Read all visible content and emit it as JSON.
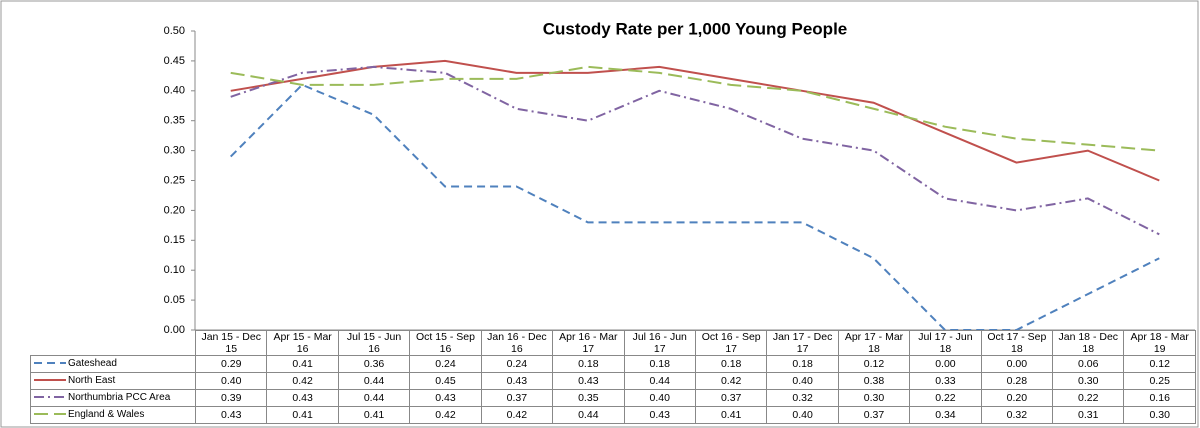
{
  "chart_data": {
    "type": "line",
    "title": "Custody Rate per 1,000 Young People",
    "categories": [
      "Jan 15 - Dec 15",
      "Apr 15 - Mar 16",
      "Jul 15 - Jun 16",
      "Oct 15 - Sep 16",
      "Jan 16 - Dec 16",
      "Apr 16 - Mar 17",
      "Jul 16 - Jun 17",
      "Oct 16 - Sep 17",
      "Jan 17 - Dec 17",
      "Apr 17 - Mar 18",
      "Jul 17 - Jun 18",
      "Oct 17 - Sep 18",
      "Jan 18 - Dec 18",
      "Apr 18 - Mar 19"
    ],
    "series": [
      {
        "name": "Gateshead",
        "color": "#4f81bd",
        "dash": "8 5",
        "values": [
          0.29,
          0.41,
          0.36,
          0.24,
          0.24,
          0.18,
          0.18,
          0.18,
          0.18,
          0.12,
          0,
          0,
          0.06,
          0.12
        ],
        "value_labels": [
          "0.29",
          "0.41",
          "0.36",
          "0.24",
          "0.24",
          "0.18",
          "0.18",
          "0.18",
          "0.18",
          "0.12",
          "0.00",
          "0.00",
          "0.06",
          "0.12"
        ]
      },
      {
        "name": "North East",
        "color": "#c0504d",
        "dash": "none",
        "values": [
          0.4,
          0.42,
          0.44,
          0.45,
          0.43,
          0.43,
          0.44,
          0.42,
          0.4,
          0.38,
          0.33,
          0.28,
          0.3,
          0.25
        ],
        "value_labels": [
          "0.40",
          "0.42",
          "0.44",
          "0.45",
          "0.43",
          "0.43",
          "0.44",
          "0.42",
          "0.40",
          "0.38",
          "0.33",
          "0.28",
          "0.30",
          "0.25"
        ]
      },
      {
        "name": "Northumbria PCC Area",
        "color": "#8064a2",
        "dash": "10 4 2 4",
        "values": [
          0.39,
          0.43,
          0.44,
          0.43,
          0.37,
          0.35,
          0.4,
          0.37,
          0.32,
          0.3,
          0.22,
          0.2,
          0.22,
          0.16
        ],
        "value_labels": [
          "0.39",
          "0.43",
          "0.44",
          "0.43",
          "0.37",
          "0.35",
          "0.40",
          "0.37",
          "0.32",
          "0.30",
          "0.22",
          "0.20",
          "0.22",
          "0.16"
        ]
      },
      {
        "name": "England & Wales",
        "color": "#9bbb59",
        "dash": "14 6",
        "values": [
          0.43,
          0.41,
          0.41,
          0.42,
          0.42,
          0.44,
          0.43,
          0.41,
          0.4,
          0.37,
          0.34,
          0.32,
          0.31,
          0.3
        ],
        "value_labels": [
          "0.43",
          "0.41",
          "0.41",
          "0.42",
          "0.42",
          "0.44",
          "0.43",
          "0.41",
          "0.40",
          "0.37",
          "0.34",
          "0.32",
          "0.31",
          "0.30"
        ]
      }
    ],
    "ylim": [
      0,
      0.5
    ],
    "yticks": [
      {
        "value": 0,
        "label": "0.00"
      },
      0.05,
      {
        "value": 0.1,
        "label": "0.10"
      },
      0.15,
      {
        "value": 0.2,
        "label": "0.20"
      },
      0.25,
      {
        "value": 0.3,
        "label": "0.30"
      },
      0.35,
      {
        "value": 0.4,
        "label": "0.40"
      },
      0.45,
      {
        "value": 0.5,
        "label": "0.50"
      }
    ]
  }
}
